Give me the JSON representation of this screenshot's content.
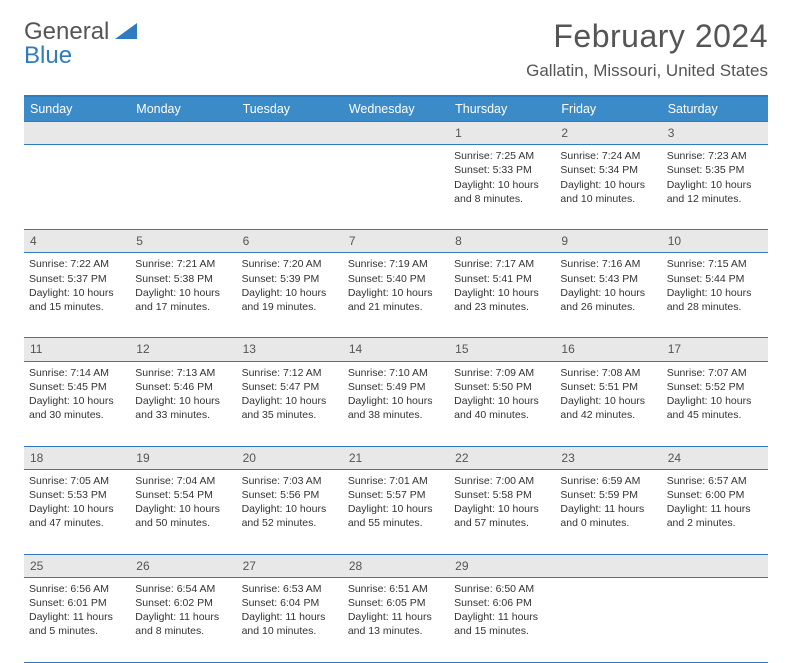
{
  "brand": {
    "part1": "General",
    "part2": "Blue"
  },
  "title": "February 2024",
  "location": "Gallatin, Missouri, United States",
  "colors": {
    "header_bg": "#3b8bc9",
    "border": "#2f7bbf",
    "daynum_bg": "#e8e8e8",
    "text": "#555555"
  },
  "day_names": [
    "Sunday",
    "Monday",
    "Tuesday",
    "Wednesday",
    "Thursday",
    "Friday",
    "Saturday"
  ],
  "weeks": [
    [
      null,
      null,
      null,
      null,
      {
        "n": "1",
        "sunrise": "Sunrise: 7:25 AM",
        "sunset": "Sunset: 5:33 PM",
        "day1": "Daylight: 10 hours",
        "day2": "and 8 minutes."
      },
      {
        "n": "2",
        "sunrise": "Sunrise: 7:24 AM",
        "sunset": "Sunset: 5:34 PM",
        "day1": "Daylight: 10 hours",
        "day2": "and 10 minutes."
      },
      {
        "n": "3",
        "sunrise": "Sunrise: 7:23 AM",
        "sunset": "Sunset: 5:35 PM",
        "day1": "Daylight: 10 hours",
        "day2": "and 12 minutes."
      }
    ],
    [
      {
        "n": "4",
        "sunrise": "Sunrise: 7:22 AM",
        "sunset": "Sunset: 5:37 PM",
        "day1": "Daylight: 10 hours",
        "day2": "and 15 minutes."
      },
      {
        "n": "5",
        "sunrise": "Sunrise: 7:21 AM",
        "sunset": "Sunset: 5:38 PM",
        "day1": "Daylight: 10 hours",
        "day2": "and 17 minutes."
      },
      {
        "n": "6",
        "sunrise": "Sunrise: 7:20 AM",
        "sunset": "Sunset: 5:39 PM",
        "day1": "Daylight: 10 hours",
        "day2": "and 19 minutes."
      },
      {
        "n": "7",
        "sunrise": "Sunrise: 7:19 AM",
        "sunset": "Sunset: 5:40 PM",
        "day1": "Daylight: 10 hours",
        "day2": "and 21 minutes."
      },
      {
        "n": "8",
        "sunrise": "Sunrise: 7:17 AM",
        "sunset": "Sunset: 5:41 PM",
        "day1": "Daylight: 10 hours",
        "day2": "and 23 minutes."
      },
      {
        "n": "9",
        "sunrise": "Sunrise: 7:16 AM",
        "sunset": "Sunset: 5:43 PM",
        "day1": "Daylight: 10 hours",
        "day2": "and 26 minutes."
      },
      {
        "n": "10",
        "sunrise": "Sunrise: 7:15 AM",
        "sunset": "Sunset: 5:44 PM",
        "day1": "Daylight: 10 hours",
        "day2": "and 28 minutes."
      }
    ],
    [
      {
        "n": "11",
        "sunrise": "Sunrise: 7:14 AM",
        "sunset": "Sunset: 5:45 PM",
        "day1": "Daylight: 10 hours",
        "day2": "and 30 minutes."
      },
      {
        "n": "12",
        "sunrise": "Sunrise: 7:13 AM",
        "sunset": "Sunset: 5:46 PM",
        "day1": "Daylight: 10 hours",
        "day2": "and 33 minutes."
      },
      {
        "n": "13",
        "sunrise": "Sunrise: 7:12 AM",
        "sunset": "Sunset: 5:47 PM",
        "day1": "Daylight: 10 hours",
        "day2": "and 35 minutes."
      },
      {
        "n": "14",
        "sunrise": "Sunrise: 7:10 AM",
        "sunset": "Sunset: 5:49 PM",
        "day1": "Daylight: 10 hours",
        "day2": "and 38 minutes."
      },
      {
        "n": "15",
        "sunrise": "Sunrise: 7:09 AM",
        "sunset": "Sunset: 5:50 PM",
        "day1": "Daylight: 10 hours",
        "day2": "and 40 minutes."
      },
      {
        "n": "16",
        "sunrise": "Sunrise: 7:08 AM",
        "sunset": "Sunset: 5:51 PM",
        "day1": "Daylight: 10 hours",
        "day2": "and 42 minutes."
      },
      {
        "n": "17",
        "sunrise": "Sunrise: 7:07 AM",
        "sunset": "Sunset: 5:52 PM",
        "day1": "Daylight: 10 hours",
        "day2": "and 45 minutes."
      }
    ],
    [
      {
        "n": "18",
        "sunrise": "Sunrise: 7:05 AM",
        "sunset": "Sunset: 5:53 PM",
        "day1": "Daylight: 10 hours",
        "day2": "and 47 minutes."
      },
      {
        "n": "19",
        "sunrise": "Sunrise: 7:04 AM",
        "sunset": "Sunset: 5:54 PM",
        "day1": "Daylight: 10 hours",
        "day2": "and 50 minutes."
      },
      {
        "n": "20",
        "sunrise": "Sunrise: 7:03 AM",
        "sunset": "Sunset: 5:56 PM",
        "day1": "Daylight: 10 hours",
        "day2": "and 52 minutes."
      },
      {
        "n": "21",
        "sunrise": "Sunrise: 7:01 AM",
        "sunset": "Sunset: 5:57 PM",
        "day1": "Daylight: 10 hours",
        "day2": "and 55 minutes."
      },
      {
        "n": "22",
        "sunrise": "Sunrise: 7:00 AM",
        "sunset": "Sunset: 5:58 PM",
        "day1": "Daylight: 10 hours",
        "day2": "and 57 minutes."
      },
      {
        "n": "23",
        "sunrise": "Sunrise: 6:59 AM",
        "sunset": "Sunset: 5:59 PM",
        "day1": "Daylight: 11 hours",
        "day2": "and 0 minutes."
      },
      {
        "n": "24",
        "sunrise": "Sunrise: 6:57 AM",
        "sunset": "Sunset: 6:00 PM",
        "day1": "Daylight: 11 hours",
        "day2": "and 2 minutes."
      }
    ],
    [
      {
        "n": "25",
        "sunrise": "Sunrise: 6:56 AM",
        "sunset": "Sunset: 6:01 PM",
        "day1": "Daylight: 11 hours",
        "day2": "and 5 minutes."
      },
      {
        "n": "26",
        "sunrise": "Sunrise: 6:54 AM",
        "sunset": "Sunset: 6:02 PM",
        "day1": "Daylight: 11 hours",
        "day2": "and 8 minutes."
      },
      {
        "n": "27",
        "sunrise": "Sunrise: 6:53 AM",
        "sunset": "Sunset: 6:04 PM",
        "day1": "Daylight: 11 hours",
        "day2": "and 10 minutes."
      },
      {
        "n": "28",
        "sunrise": "Sunrise: 6:51 AM",
        "sunset": "Sunset: 6:05 PM",
        "day1": "Daylight: 11 hours",
        "day2": "and 13 minutes."
      },
      {
        "n": "29",
        "sunrise": "Sunrise: 6:50 AM",
        "sunset": "Sunset: 6:06 PM",
        "day1": "Daylight: 11 hours",
        "day2": "and 15 minutes."
      },
      null,
      null
    ]
  ]
}
